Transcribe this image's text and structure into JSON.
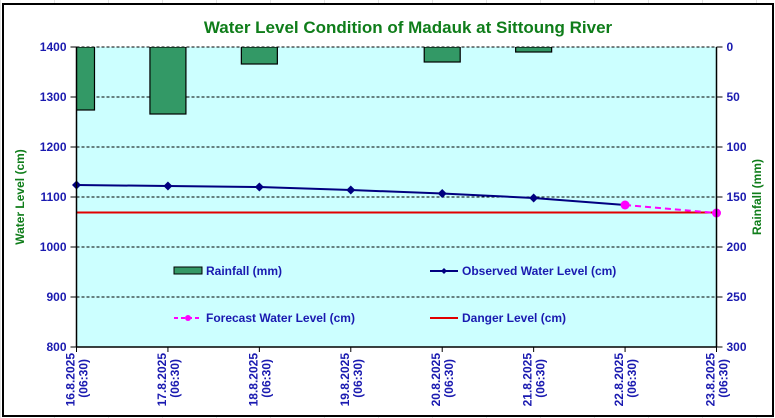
{
  "chart_data": {
    "type": "bar+line",
    "title": "Water Level Condition of Madauk at Sittoung River",
    "categories": [
      "16.8.2025\n(06:30)",
      "17.8.2025\n(06:30)",
      "18.8.2025\n(06:30)",
      "19.8.2025\n(06:30)",
      "20.8.2025\n(06:30)",
      "21.8.2025\n(06:30)",
      "22.8.2025\n(06:30)",
      "23.8.2025\n(06:30)"
    ],
    "category_lines": [
      [
        "16.8.2025",
        "(06:30)"
      ],
      [
        "17.8.2025",
        "(06:30)"
      ],
      [
        "18.8.2025",
        "(06:30)"
      ],
      [
        "19.8.2025",
        "(06:30)"
      ],
      [
        "20.8.2025",
        "(06:30)"
      ],
      [
        "21.8.2025",
        "(06:30)"
      ],
      [
        "22.8.2025",
        "(06:30)"
      ],
      [
        "23.8.2025",
        "(06:30)"
      ]
    ],
    "ylabel": "Water Level (cm)",
    "y2label": "Rainfall (mm)",
    "ylim": [
      800,
      1400
    ],
    "yticks": [
      800,
      900,
      1000,
      1100,
      1200,
      1300,
      1400
    ],
    "y2lim": [
      300,
      0
    ],
    "y2ticks": [
      0,
      50,
      100,
      150,
      200,
      250,
      300
    ],
    "y2_inverted": true,
    "grid": "horizontal dashed",
    "legend_position": "center (inside plot, 2 columns)",
    "series": [
      {
        "name": "Rainfall (mm)",
        "type": "bar",
        "axis": "right",
        "color": "#339966",
        "values": [
          63,
          67,
          17,
          0,
          15,
          5,
          null,
          null
        ]
      },
      {
        "name": "Observed Water Level (cm)",
        "type": "line",
        "axis": "left",
        "color": "#000080",
        "marker": "diamond",
        "values": [
          1124,
          1122,
          1120,
          1114,
          1107,
          1098,
          1084,
          null
        ]
      },
      {
        "name": "Forecast Water Level (cm)",
        "type": "line",
        "axis": "left",
        "color": "#ff00ff",
        "marker": "circle",
        "dashed": true,
        "values": [
          null,
          null,
          null,
          null,
          null,
          null,
          1084,
          1068
        ]
      },
      {
        "name": "Danger Level (cm)",
        "type": "line",
        "axis": "left",
        "color": "#e00000",
        "values": [
          1069,
          1069,
          1069,
          1069,
          1069,
          1069,
          1069,
          1069
        ]
      }
    ],
    "legend": [
      {
        "label": "Rainfall (mm)",
        "kind": "bar",
        "color": "#339966"
      },
      {
        "label": "Observed Water Level (cm)",
        "kind": "line-diamond",
        "color": "#000080"
      },
      {
        "label": "Forecast Water Level (cm)",
        "kind": "dashed-circle",
        "color": "#ff00ff"
      },
      {
        "label": "Danger Level (cm)",
        "kind": "line",
        "color": "#e00000"
      }
    ],
    "plot_background": "#ccffff"
  }
}
